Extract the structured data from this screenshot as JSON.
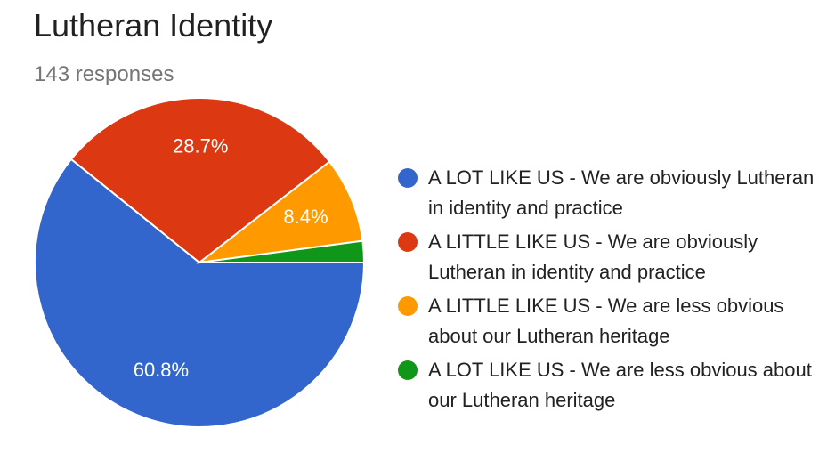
{
  "chart_data": {
    "type": "pie",
    "title": "Lutheran Identity",
    "subtitle": "143 responses",
    "categories": [
      "A LOT LIKE US - We are obviously Lutheran in identity and practice",
      "A LITTLE LIKE US - We are obviously Lutheran in identity and practice",
      "A LITTLE LIKE US - We are less obvious about our Lutheran heritage",
      "A LOT LIKE US - We are less obvious about our Lutheran heritage"
    ],
    "values": [
      60.8,
      28.7,
      8.4,
      2.1
    ],
    "value_labels": [
      "60.8%",
      "28.7%",
      "8.4%",
      null
    ],
    "colors": [
      "#3366cc",
      "#dc3912",
      "#ff9900",
      "#109618"
    ],
    "legend": "right"
  }
}
